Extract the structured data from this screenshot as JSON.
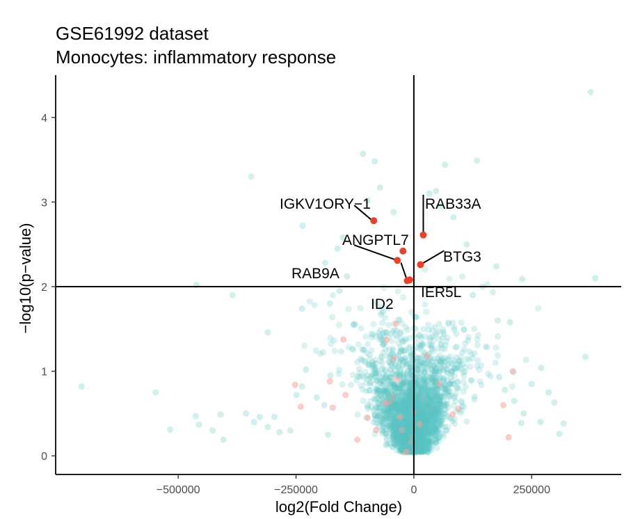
{
  "chart_data": {
    "type": "scatter",
    "title": "GSE61992 dataset",
    "subtitle": "Monocytes: inflammatory response",
    "xlabel": "log2(Fold Change)",
    "ylabel": "−log10(p−value)",
    "xlim": [
      -760000,
      440000
    ],
    "ylim": [
      -0.22,
      4.5
    ],
    "x_ticks": [
      -500000,
      -250000,
      0,
      250000
    ],
    "x_tick_labels": [
      "−500000",
      "−250000",
      "0",
      "250000"
    ],
    "y_ticks": [
      0,
      1,
      2,
      3,
      4
    ],
    "y_tick_labels": [
      "0",
      "1",
      "2",
      "3",
      "4"
    ],
    "thresholds": {
      "x": 0,
      "y": 2
    },
    "grid": false,
    "legend": "none",
    "colors": {
      "background_point": "#5BC4C6",
      "nonsignificant_red_point": "#F4A6A0",
      "highlight_point": "#E8412E",
      "reference_line": "#000000"
    },
    "highlighted_genes": [
      {
        "label": "IGKV1ORY−1",
        "x": -85000,
        "y": 2.78
      },
      {
        "label": "RAB33A",
        "x": 20000,
        "y": 2.61
      },
      {
        "label": "ANGPTL7",
        "x": -23000,
        "y": 2.42
      },
      {
        "label": "BTG3",
        "x": 14000,
        "y": 2.26
      },
      {
        "label": "RAB9A",
        "x": -35000,
        "y": 2.31
      },
      {
        "label": "IER5L",
        "x": -9000,
        "y": 2.08
      },
      {
        "label": "ID2",
        "x": -14000,
        "y": 2.07
      }
    ],
    "outlier_points": [
      {
        "x": 375000,
        "y": 4.3
      },
      {
        "x": -108000,
        "y": 3.57
      },
      {
        "x": -83000,
        "y": 3.48
      },
      {
        "x": 134000,
        "y": 3.49
      },
      {
        "x": 66000,
        "y": 3.44
      },
      {
        "x": -345000,
        "y": 3.3
      },
      {
        "x": -72000,
        "y": 3.17
      },
      {
        "x": 47000,
        "y": 3.13
      },
      {
        "x": 33000,
        "y": 3.1
      },
      {
        "x": -98000,
        "y": 3.02
      },
      {
        "x": 56000,
        "y": 2.95
      },
      {
        "x": -43000,
        "y": 2.88
      },
      {
        "x": 84000,
        "y": 2.82
      },
      {
        "x": -236000,
        "y": 2.72
      },
      {
        "x": -150000,
        "y": 2.58
      },
      {
        "x": 112000,
        "y": 2.5
      },
      {
        "x": -162000,
        "y": 2.45
      },
      {
        "x": 175000,
        "y": 2.24
      },
      {
        "x": -188000,
        "y": 2.28
      },
      {
        "x": 230000,
        "y": 2.09
      },
      {
        "x": 385000,
        "y": 2.1
      },
      {
        "x": -461000,
        "y": 2.02
      },
      {
        "x": -142000,
        "y": 2.12
      },
      {
        "x": 146000,
        "y": 2.0
      },
      {
        "x": -385000,
        "y": 1.9
      },
      {
        "x": -237000,
        "y": 1.74
      },
      {
        "x": 178000,
        "y": 1.6
      },
      {
        "x": -158000,
        "y": 1.95
      },
      {
        "x": 204000,
        "y": 1.58
      },
      {
        "x": -310000,
        "y": 1.46
      },
      {
        "x": 125000,
        "y": 1.9
      },
      {
        "x": -128000,
        "y": 1.55
      },
      {
        "x": -178000,
        "y": 1.8
      },
      {
        "x": 364000,
        "y": 1.17
      },
      {
        "x": -705000,
        "y": 0.82
      },
      {
        "x": -548000,
        "y": 0.75
      },
      {
        "x": -517000,
        "y": 0.31
      },
      {
        "x": -463000,
        "y": 0.47
      },
      {
        "x": -456000,
        "y": 0.37
      },
      {
        "x": -427000,
        "y": 0.3
      },
      {
        "x": -410000,
        "y": 0.49
      },
      {
        "x": -404000,
        "y": 0.19
      },
      {
        "x": -356000,
        "y": 0.5
      },
      {
        "x": -339000,
        "y": 0.4
      },
      {
        "x": -327000,
        "y": 0.46
      },
      {
        "x": -310000,
        "y": 0.34
      },
      {
        "x": -296000,
        "y": 0.46
      },
      {
        "x": -285000,
        "y": 0.28
      },
      {
        "x": -262000,
        "y": 0.3
      },
      {
        "x": -249000,
        "y": 0.72
      },
      {
        "x": -237000,
        "y": 0.82
      },
      {
        "x": -229000,
        "y": 1.02
      },
      {
        "x": -206000,
        "y": 0.69
      },
      {
        "x": -190000,
        "y": 0.6
      },
      {
        "x": -177000,
        "y": 0.95
      },
      {
        "x": -182000,
        "y": 0.25
      },
      {
        "x": 270000,
        "y": 1.04
      },
      {
        "x": 250000,
        "y": 0.85
      },
      {
        "x": 286000,
        "y": 0.75
      },
      {
        "x": 298000,
        "y": 0.63
      },
      {
        "x": 318000,
        "y": 0.38
      },
      {
        "x": 309000,
        "y": 0.26
      },
      {
        "x": 228000,
        "y": 0.39
      },
      {
        "x": 233000,
        "y": 0.5
      },
      {
        "x": 193000,
        "y": 0.78
      },
      {
        "x": 181000,
        "y": 0.93
      },
      {
        "x": 269000,
        "y": 0.4
      },
      {
        "x": 213000,
        "y": 0.65
      }
    ],
    "red_background_points": [
      {
        "x": -58000,
        "y": 1.37
      },
      {
        "x": -43000,
        "y": 1.15
      },
      {
        "x": -178000,
        "y": 0.88
      },
      {
        "x": -172000,
        "y": 0.57
      },
      {
        "x": -252000,
        "y": 0.84
      },
      {
        "x": -240000,
        "y": 0.58
      },
      {
        "x": -145000,
        "y": 0.72
      },
      {
        "x": -98000,
        "y": 0.45
      },
      {
        "x": -120000,
        "y": 0.19
      },
      {
        "x": -60000,
        "y": 0.62
      },
      {
        "x": 28000,
        "y": 1.18
      },
      {
        "x": 53000,
        "y": 0.85
      },
      {
        "x": 82000,
        "y": 0.49
      },
      {
        "x": 190000,
        "y": 0.6
      },
      {
        "x": 201000,
        "y": 0.22
      },
      {
        "x": 210000,
        "y": 1.0
      }
    ],
    "bulk_cloud": {
      "count": 3000,
      "x_spread_at_y0": 12000,
      "x_spread_per_unit_y": 52000,
      "p_value_threshold_y": 2,
      "red_fraction": 0.015
    }
  }
}
